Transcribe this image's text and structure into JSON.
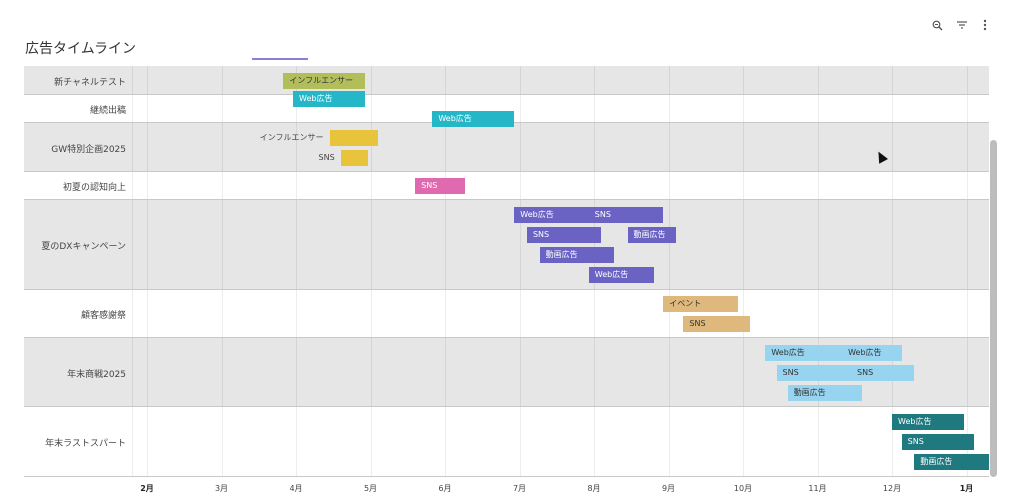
{
  "title": "広告タイムライン",
  "toolbar": {
    "zoom_icon": "zoom-icon",
    "filter_icon": "filter-icon",
    "menu_icon": "more-vert-icon"
  },
  "axis": {
    "ticks": [
      "2月",
      "3月",
      "4月",
      "5月",
      "6月",
      "7月",
      "8月",
      "9月",
      "10月",
      "11月",
      "12月",
      "1月"
    ],
    "bold_ticks": [
      "2月",
      "1月"
    ]
  },
  "rows": [
    {
      "label": "新チャネルテスト",
      "shade": "gray",
      "bars": [
        {
          "text": "インフルエンサー",
          "color": "#b2be5a",
          "textColor": "#333333",
          "start": 3.83,
          "end": 4.93
        }
      ]
    },
    {
      "label": "継続出稿",
      "shade": "white",
      "bars": [
        {
          "text": "Web広告",
          "color": "#25b6c8",
          "textColor": "#ffffff",
          "start": 3.96,
          "end": 4.93
        },
        {
          "text": "Web広告",
          "color": "#25b6c8",
          "textColor": "#ffffff",
          "start": 5.83,
          "end": 6.93
        }
      ]
    },
    {
      "label": "GW特別企画2025",
      "shade": "gray",
      "bars": [
        {
          "text": "インフルエンサー",
          "color": "#e8c33c",
          "textColor": "#333333",
          "start": 4.45,
          "end": 5.1,
          "outside": true
        },
        {
          "text": "SNS",
          "color": "#e8c33c",
          "textColor": "#333333",
          "start": 4.6,
          "end": 4.97,
          "outside": true
        }
      ]
    },
    {
      "label": "初夏の認知向上",
      "shade": "white",
      "bars": [
        {
          "text": "SNS",
          "color": "#e06ab0",
          "textColor": "#ffffff",
          "start": 5.6,
          "end": 6.27
        }
      ]
    },
    {
      "label": "夏のDXキャンペーン",
      "shade": "gray",
      "bars": [
        {
          "text": "Web広告",
          "color": "#6b63c4",
          "textColor": "#ffffff",
          "start": 6.93,
          "end": 8.93,
          "text2": "SNS",
          "text2Pos": 7.93
        },
        {
          "text": "SNS",
          "color": "#6b63c4",
          "textColor": "#ffffff",
          "start": 7.1,
          "end": 8.1,
          "text2": "動画広告",
          "text2Start": 8.45,
          "text2End": 9.1
        },
        {
          "text": "動画広告",
          "color": "#6b63c4",
          "textColor": "#ffffff",
          "start": 7.27,
          "end": 8.27
        },
        {
          "text": "Web広告",
          "color": "#6b63c4",
          "textColor": "#ffffff",
          "start": 7.93,
          "end": 8.8
        }
      ]
    },
    {
      "label": "顧客感謝祭",
      "shade": "white",
      "bars": [
        {
          "text": "イベント",
          "color": "#deb87c",
          "textColor": "#333333",
          "start": 8.93,
          "end": 9.93
        },
        {
          "text": "SNS",
          "color": "#deb87c",
          "textColor": "#333333",
          "start": 9.2,
          "end": 10.1
        }
      ]
    },
    {
      "label": "年末商戦2025",
      "shade": "gray",
      "bars": [
        {
          "text": "Web広告",
          "color": "#96d4f0",
          "textColor": "#333333",
          "start": 10.3,
          "end": 12.13,
          "text2": "Web広告",
          "text2Pos": 11.33
        },
        {
          "text": "SNS",
          "color": "#96d4f0",
          "textColor": "#333333",
          "start": 10.45,
          "end": 12.3,
          "text2": "SNS",
          "text2Pos": 11.45
        },
        {
          "text": "動画広告",
          "color": "#96d4f0",
          "textColor": "#333333",
          "start": 10.6,
          "end": 11.6
        }
      ]
    },
    {
      "label": "年末ラストスパート",
      "shade": "white",
      "bars": [
        {
          "text": "Web広告",
          "color": "#1f7a80",
          "textColor": "#ffffff",
          "start": 12.0,
          "end": 12.97
        },
        {
          "text": "SNS",
          "color": "#1f7a80",
          "textColor": "#ffffff",
          "start": 12.13,
          "end": 13.1
        },
        {
          "text": "動画広告",
          "color": "#1f7a80",
          "textColor": "#ffffff",
          "start": 12.3,
          "end": 13.3
        }
      ]
    }
  ]
}
